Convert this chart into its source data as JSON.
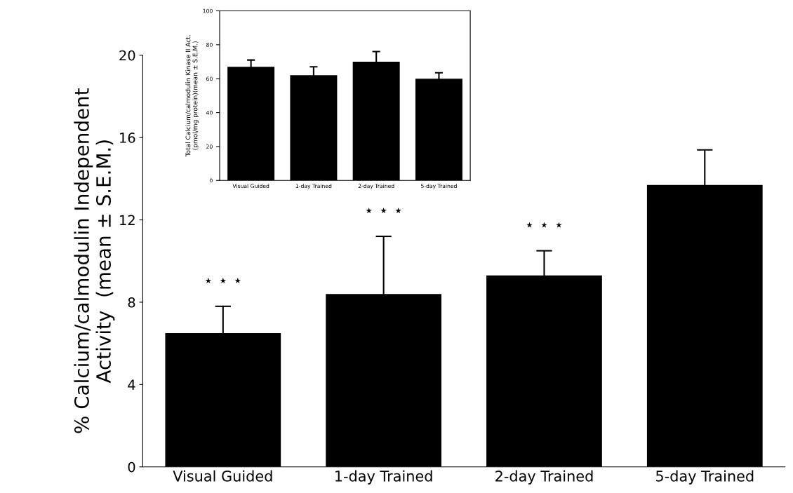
{
  "chart_data": [
    {
      "type": "bar",
      "ylabel": "% Calcium/calmodulin Independent\nActivity  (mean ± S.E.M.)",
      "categories": [
        "Visual Guided",
        "1-day Trained",
        "2-day Trained",
        "5-day Trained"
      ],
      "values": [
        6.5,
        8.4,
        9.3,
        13.7
      ],
      "errors": [
        1.3,
        2.8,
        1.2,
        1.7
      ],
      "color": "#000000",
      "ylim": [
        0,
        20
      ],
      "yticks": [
        0,
        4,
        8,
        12,
        16,
        20
      ],
      "grid": false,
      "annotations": [
        "⋆ ⋆ ⋆",
        "⋆ ⋆ ⋆",
        "⋆ ⋆ ⋆"
      ]
    },
    {
      "type": "bar",
      "ylabel": "Total Calcium/calmodulin Kinase II Act.\n(pmol/mg protein)(mean ± S.E.M.)",
      "categories": [
        "Visual Guided",
        "1-day Trained",
        "2-day Trained",
        "5-day Trained"
      ],
      "values": [
        67,
        62,
        70,
        60
      ],
      "errors": [
        4,
        5,
        6,
        3.5
      ],
      "color": "#000000",
      "ylim": [
        0,
        100
      ],
      "yticks": [
        0,
        20,
        40,
        60,
        80,
        100
      ],
      "grid": false
    }
  ]
}
